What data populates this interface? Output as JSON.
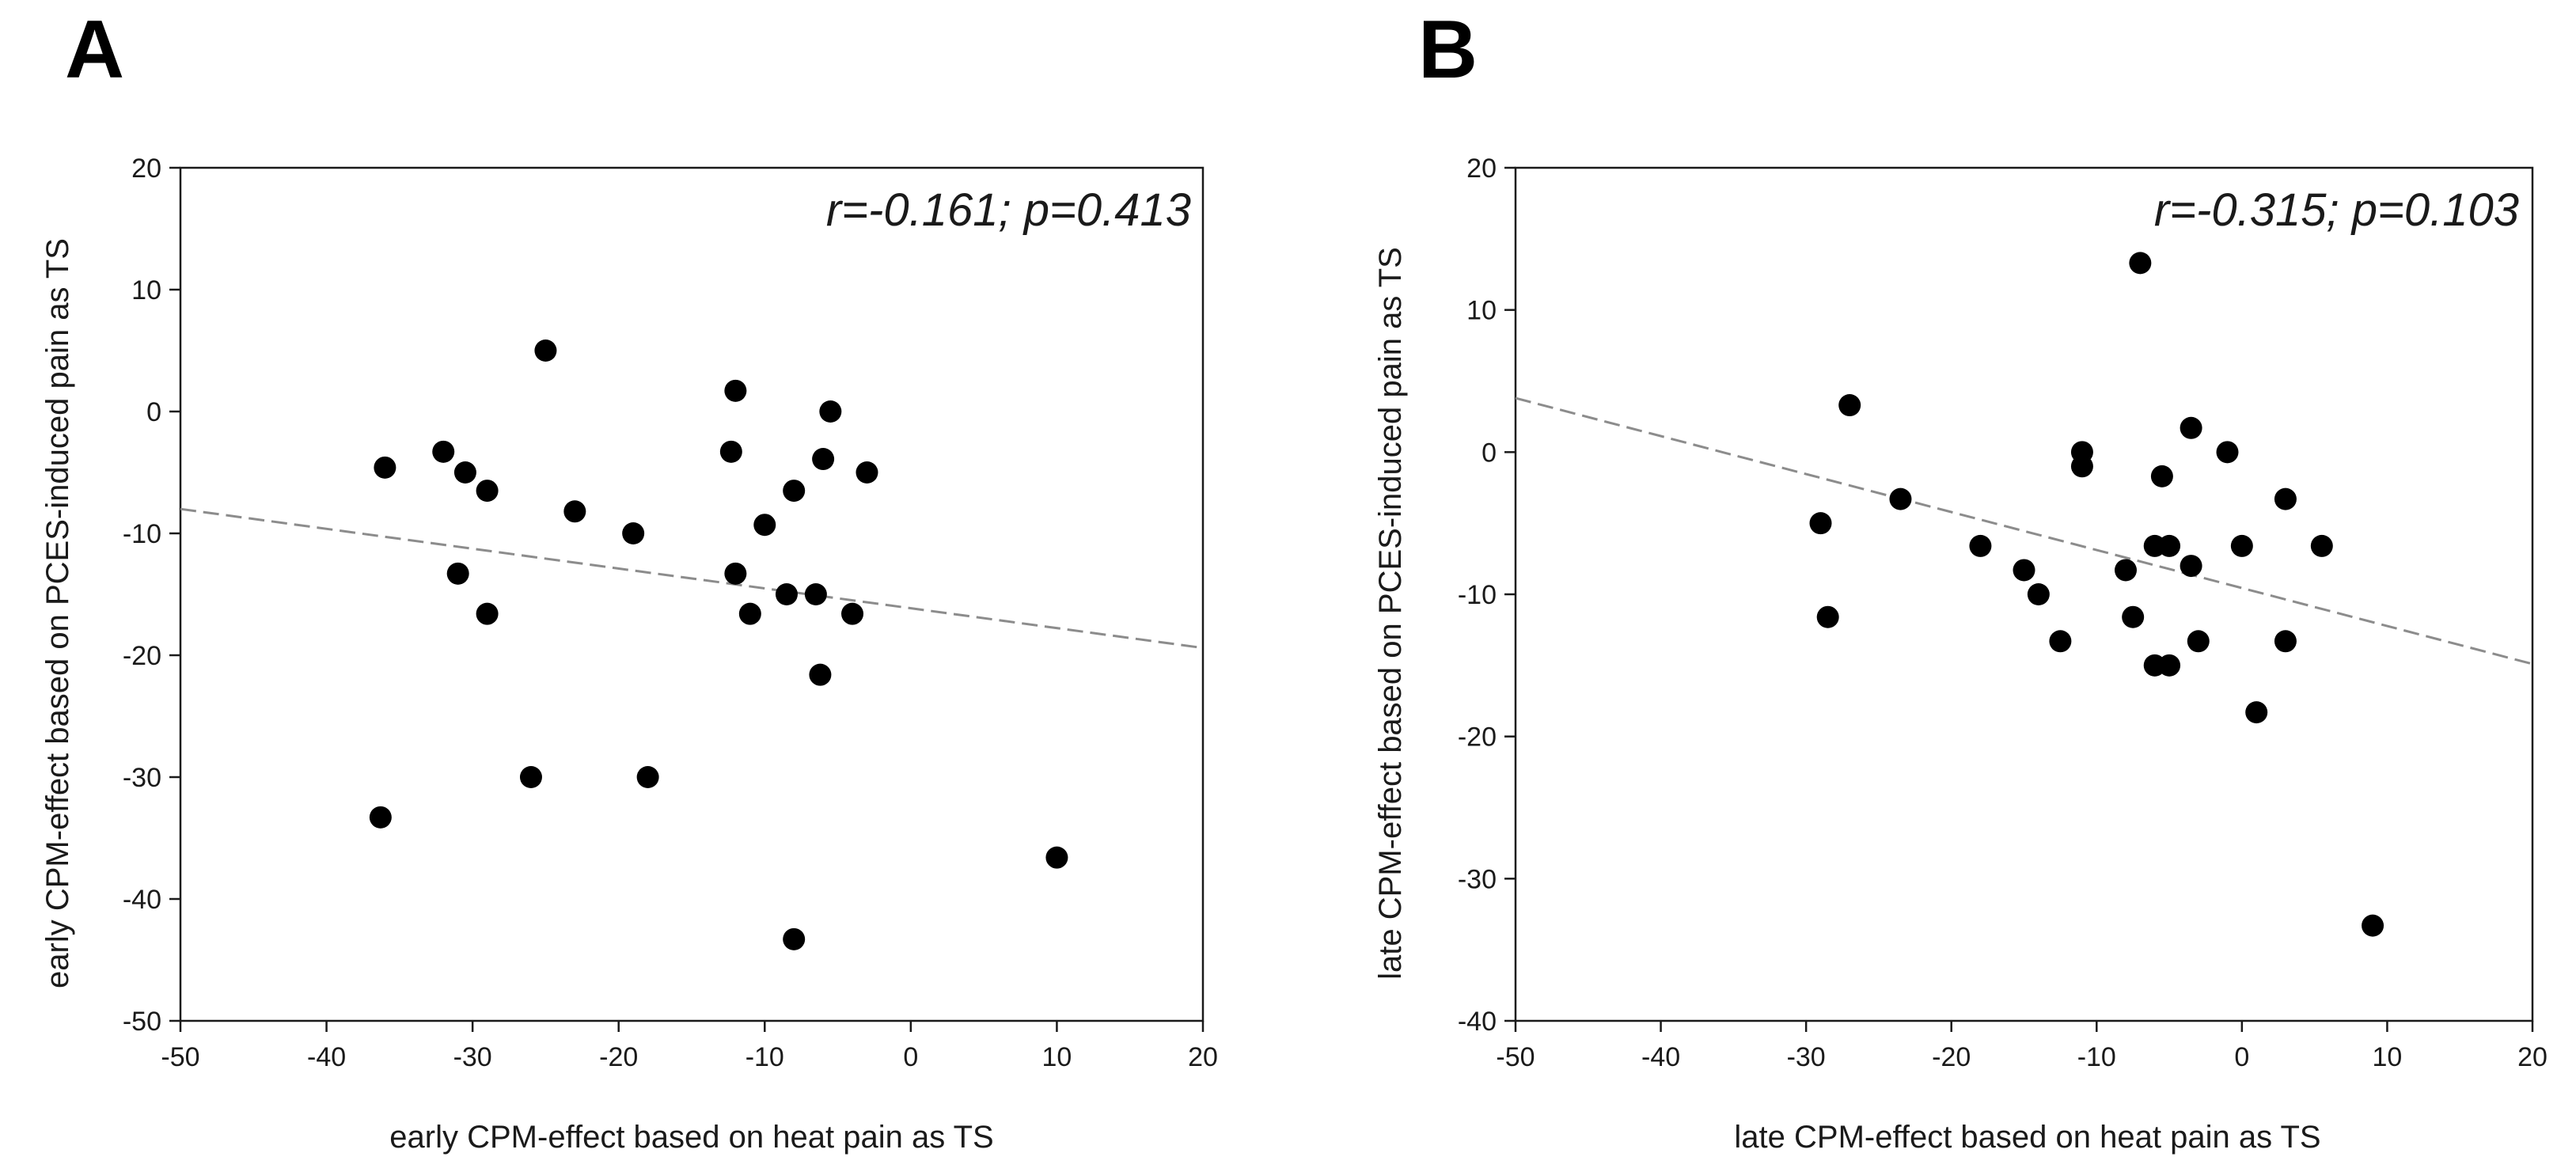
{
  "chart_data": [
    {
      "type": "scatter",
      "panel": "A",
      "title": "",
      "xlabel": "early CPM-effect based on heat pain as TS",
      "ylabel": "early CPM-effect based on PCES-induced pain as TS",
      "xlim": [
        -50,
        20
      ],
      "ylim": [
        -50,
        20
      ],
      "xticks": [
        -50,
        -40,
        -30,
        -20,
        -10,
        0,
        10,
        20
      ],
      "yticks": [
        -50,
        -40,
        -30,
        -20,
        -10,
        0,
        10,
        20
      ],
      "annotation": "r=-0.161; p=0.413",
      "fit_line": {
        "x": [
          -50,
          20
        ],
        "y": [
          -8,
          -19.4
        ]
      },
      "points": [
        {
          "x": -36,
          "y": -4.6
        },
        {
          "x": -32,
          "y": -3.3
        },
        {
          "x": -30.5,
          "y": -5
        },
        {
          "x": -29,
          "y": -6.5
        },
        {
          "x": -31,
          "y": -13.3
        },
        {
          "x": -29,
          "y": -16.6
        },
        {
          "x": -36.3,
          "y": -33.3
        },
        {
          "x": -25,
          "y": 5
        },
        {
          "x": -23,
          "y": -8.2
        },
        {
          "x": -26,
          "y": -30
        },
        {
          "x": -19,
          "y": -10
        },
        {
          "x": -18,
          "y": -30
        },
        {
          "x": -12,
          "y": 1.7
        },
        {
          "x": -12.3,
          "y": -3.3
        },
        {
          "x": -12,
          "y": -13.3
        },
        {
          "x": -10,
          "y": -9.3
        },
        {
          "x": -11,
          "y": -16.6
        },
        {
          "x": -8,
          "y": -6.5
        },
        {
          "x": -8.5,
          "y": -15
        },
        {
          "x": -6.5,
          "y": -15
        },
        {
          "x": -5.5,
          "y": 0
        },
        {
          "x": -6,
          "y": -3.9
        },
        {
          "x": -3,
          "y": -5
        },
        {
          "x": -4,
          "y": -16.6
        },
        {
          "x": -6.2,
          "y": -21.6
        },
        {
          "x": -8,
          "y": -43.3
        },
        {
          "x": 10,
          "y": -36.6
        }
      ]
    },
    {
      "type": "scatter",
      "panel": "B",
      "title": "",
      "xlabel": "late CPM-effect based on heat pain as TS",
      "ylabel": "late CPM-effect based on PCES-induced pain as TS",
      "xlim": [
        -50,
        20
      ],
      "ylim": [
        -40,
        20
      ],
      "xticks": [
        -50,
        -40,
        -30,
        -20,
        -10,
        0,
        10,
        20
      ],
      "yticks": [
        -40,
        -30,
        -20,
        -10,
        0,
        10,
        20
      ],
      "annotation": "r=-0.315; p=0.103",
      "fit_line": {
        "x": [
          -50,
          20
        ],
        "y": [
          3.8,
          -14.9
        ]
      },
      "points": [
        {
          "x": -27,
          "y": 3.3
        },
        {
          "x": -29,
          "y": -5
        },
        {
          "x": -28.5,
          "y": -11.6
        },
        {
          "x": -23.5,
          "y": -3.3
        },
        {
          "x": -18,
          "y": -6.6
        },
        {
          "x": -15,
          "y": -8.3
        },
        {
          "x": -14,
          "y": -10
        },
        {
          "x": -12.5,
          "y": -13.3
        },
        {
          "x": -11,
          "y": 0
        },
        {
          "x": -11,
          "y": -1
        },
        {
          "x": -8,
          "y": -8.3
        },
        {
          "x": -7.5,
          "y": -11.6
        },
        {
          "x": -7,
          "y": 13.3
        },
        {
          "x": -6,
          "y": -6.6
        },
        {
          "x": -6,
          "y": -15
        },
        {
          "x": -5.5,
          "y": -1.7
        },
        {
          "x": -5,
          "y": -6.6
        },
        {
          "x": -5,
          "y": -15
        },
        {
          "x": -3.5,
          "y": 1.7
        },
        {
          "x": -3.5,
          "y": -8
        },
        {
          "x": -3,
          "y": -13.3
        },
        {
          "x": -1,
          "y": 0
        },
        {
          "x": 0,
          "y": -6.6
        },
        {
          "x": 1,
          "y": -18.3
        },
        {
          "x": 3,
          "y": -3.3
        },
        {
          "x": 3,
          "y": -13.3
        },
        {
          "x": 5.5,
          "y": -6.6
        },
        {
          "x": 9,
          "y": -33.3
        }
      ]
    }
  ]
}
